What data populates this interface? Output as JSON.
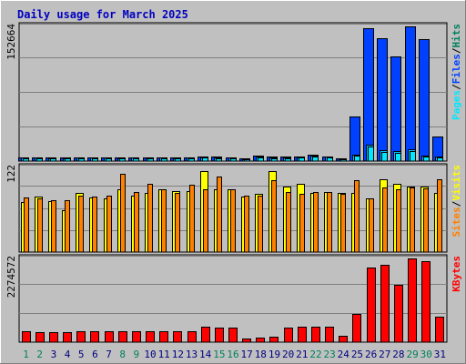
{
  "chart_data": {
    "type": "bar",
    "title": "Daily usage for March 2025",
    "categories": [
      "1",
      "2",
      "3",
      "4",
      "5",
      "6",
      "7",
      "8",
      "9",
      "10",
      "11",
      "12",
      "13",
      "14",
      "15",
      "16",
      "17",
      "18",
      "19",
      "20",
      "21",
      "22",
      "23",
      "24",
      "25",
      "26",
      "27",
      "28",
      "29",
      "30",
      "31"
    ],
    "weekend_days": [
      "1",
      "2",
      "8",
      "9",
      "15",
      "16",
      "22",
      "23",
      "29",
      "30"
    ],
    "colors": {
      "hits": "#0040ff",
      "files": "#00c0ff",
      "pages": "#00e8ff",
      "visits": "#ffff00",
      "sites": "#ff8000",
      "kbytes": "#ff0000",
      "weekend": "#00805c",
      "weekday": "#000080",
      "title": "#0000c0",
      "grid": "#808080"
    },
    "panels": [
      {
        "id": "hits-files-pages",
        "ymax_label": "152664",
        "ylim": [
          0,
          152664
        ],
        "legend": [
          {
            "text": "Pages",
            "color": "#00e8ff"
          },
          {
            "text": "/",
            "color": "#000000"
          },
          {
            "text": "Files",
            "color": "#0040ff"
          },
          {
            "text": "/",
            "color": "#000000"
          },
          {
            "text": "Hits",
            "color": "#00805c"
          }
        ],
        "series": [
          {
            "name": "Hits",
            "color": "#0040ff",
            "values": [
              4500,
              4400,
              3800,
              4000,
              4600,
              4100,
              4200,
              3900,
              4100,
              4000,
              4600,
              4000,
              4200,
              5200,
              4700,
              4300,
              2600,
              6200,
              4700,
              4700,
              5000,
              7400,
              5600,
              2800,
              50500,
              149500,
              138000,
              117500,
              151500,
              137500,
              28000
            ]
          },
          {
            "name": "Files",
            "color": "#00c0ff",
            "values": [
              4000,
              3900,
              3300,
              3500,
              4000,
              3600,
              3600,
              3400,
              3600,
              3500,
              4000,
              3500,
              3700,
              4500,
              4100,
              3800,
              2200,
              5400,
              4100,
              4100,
              4300,
              6400,
              4800,
              2400,
              7000,
              18500,
              12500,
              11000,
              13500,
              6500,
              5500
            ]
          },
          {
            "name": "Pages",
            "color": "#00e8ff",
            "values": [
              3500,
              3300,
              2700,
              2900,
              3300,
              3000,
              3000,
              2800,
              3000,
              2900,
              3300,
              2900,
              3100,
              3700,
              3400,
              3100,
              1800,
              4400,
              3400,
              3400,
              3600,
              5300,
              4000,
              2000,
              6000,
              16000,
              10500,
              9500,
              11500,
              5500,
              4500
            ]
          }
        ]
      },
      {
        "id": "visits-sites",
        "ymax_label": "122",
        "ylim": [
          0,
          122
        ],
        "legend": [
          {
            "text": "Sites",
            "color": "#ff8000"
          },
          {
            "text": "/",
            "color": "#000000"
          },
          {
            "text": "Visits",
            "color": "#ffff00"
          }
        ],
        "series": [
          {
            "name": "Visits",
            "color": "#ffff00",
            "values": [
              71,
              79,
              73,
              60,
              84,
              78,
              77,
              90,
              81,
              85,
              89,
              87,
              87,
              116,
              89,
              90,
              79,
              83,
              116,
              93,
              97,
              84,
              86,
              84,
              84,
              76,
              104,
              97,
              94,
              93,
              84
            ]
          },
          {
            "name": "Sites",
            "color": "#ff8000",
            "values": [
              78,
              76,
              74,
              74,
              81,
              79,
              81,
              112,
              86,
              97,
              90,
              85,
              96,
              90,
              108,
              89,
              80,
              81,
              103,
              86,
              83,
              86,
              86,
              83,
              102,
              76,
              92,
              89,
              92,
              91,
              104
            ]
          }
        ]
      },
      {
        "id": "kbytes",
        "ymax_label": "2274572",
        "ylim": [
          0,
          2274572
        ],
        "legend": [
          {
            "text": "KBytes",
            "color": "#ff0000"
          }
        ],
        "series": [
          {
            "name": "KBytes",
            "color": "#ff0000",
            "values": [
              285000,
              280000,
              275000,
              275000,
              295000,
              285000,
              285000,
              285000,
              295000,
              295000,
              290000,
              290000,
              300000,
              405000,
              400000,
              395000,
              110000,
              118000,
              150000,
              380000,
              415000,
              420000,
              405000,
              180000,
              765000,
              2000000,
              2080000,
              1550000,
              2240000,
              2180000,
              685000
            ]
          }
        ]
      }
    ]
  }
}
